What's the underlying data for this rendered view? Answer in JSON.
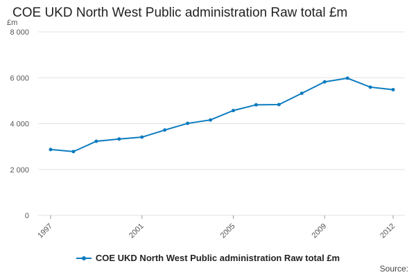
{
  "chart_data": {
    "type": "line",
    "title": "COE UKD North West Public administration Raw total £m",
    "unit_label": "£m",
    "x": [
      1997,
      1998,
      1999,
      2000,
      2001,
      2002,
      2003,
      2004,
      2005,
      2006,
      2007,
      2008,
      2009,
      2010,
      2011,
      2012
    ],
    "x_tick_labels": [
      "1997",
      "2001",
      "2005",
      "2009",
      "2012"
    ],
    "x_tick_values": [
      1997,
      2001,
      2005,
      2009,
      2012
    ],
    "y_tick_labels": [
      "0",
      "2 000",
      "4 000",
      "6 000",
      "8 000"
    ],
    "y_tick_values": [
      0,
      2000,
      4000,
      6000,
      8000
    ],
    "ylim": [
      0,
      8000
    ],
    "grid": true,
    "legend_position": "bottom",
    "series": [
      {
        "name": "COE UKD North West Public administration Raw total £m",
        "color": "#0a7bbf",
        "values": [
          2870,
          2780,
          3230,
          3330,
          3410,
          3720,
          4010,
          4160,
          4570,
          4820,
          4830,
          5320,
          5820,
          5980,
          5590,
          5480
        ]
      }
    ]
  },
  "source_label": "Source:"
}
